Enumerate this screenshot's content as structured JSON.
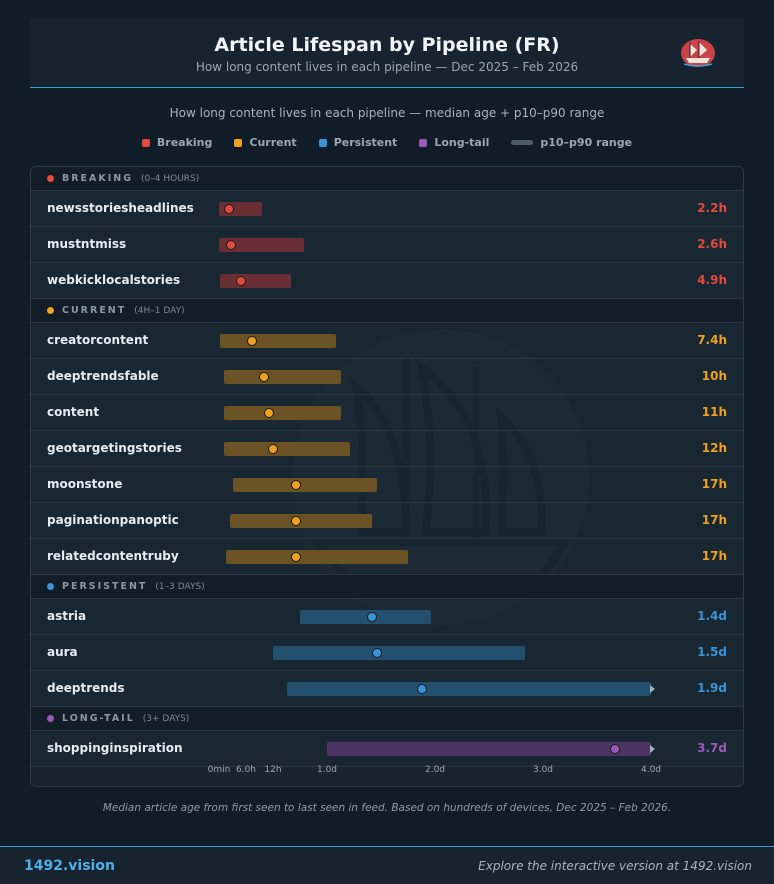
{
  "header": {
    "title": "Article Lifespan by Pipeline (FR)",
    "subtitle": "How long content lives in each pipeline — Dec 2025 – Feb 2026"
  },
  "chart_subtitle": "How long content lives in each pipeline — median age + p10–p90 range",
  "legend": [
    {
      "label": "Breaking",
      "color": "#e04b3e",
      "kind": "dot"
    },
    {
      "label": "Current",
      "color": "#f0a020",
      "kind": "dot"
    },
    {
      "label": "Persistent",
      "color": "#3b93d6",
      "kind": "dot"
    },
    {
      "label": "Long-tail",
      "color": "#9b59b6",
      "kind": "dot"
    },
    {
      "label": "p10–p90 range",
      "color": "#4e5c6a",
      "kind": "range"
    }
  ],
  "chart_data": {
    "type": "range-dot",
    "units": "hours",
    "x_ticks": [
      {
        "label": "0min",
        "hours": 0
      },
      {
        "label": "6.0h",
        "hours": 6
      },
      {
        "label": "12h",
        "hours": 12
      },
      {
        "label": "1.0d",
        "hours": 24
      },
      {
        "label": "2.0d",
        "hours": 48
      },
      {
        "label": "3.0d",
        "hours": 72
      },
      {
        "label": "4.0d",
        "hours": 96
      }
    ],
    "xlim": [
      0,
      96
    ],
    "groups": [
      {
        "name": "BREAKING",
        "range_label": "(0–4 HOURS)",
        "color": "#e04b3e",
        "bar_color": "#6a2f34",
        "rows": [
          {
            "name": "newsstoriesheadlines",
            "p10": 0.1,
            "p90": 9.5,
            "median": 2.2,
            "value_label": "2.2h"
          },
          {
            "name": "mustntmiss",
            "p10": 0.1,
            "p90": 19,
            "median": 2.6,
            "value_label": "2.6h"
          },
          {
            "name": "webkicklocalstories",
            "p10": 0.3,
            "p90": 16,
            "median": 4.9,
            "value_label": "4.9h"
          }
        ]
      },
      {
        "name": "CURRENT",
        "range_label": "(4H–1 DAY)",
        "color": "#f0a020",
        "bar_color": "#6b5225",
        "rows": [
          {
            "name": "creatorcontent",
            "p10": 0.3,
            "p90": 26,
            "median": 7.4,
            "value_label": "7.4h"
          },
          {
            "name": "deeptrendsfable",
            "p10": 1,
            "p90": 27,
            "median": 10,
            "value_label": "10h"
          },
          {
            "name": "content",
            "p10": 1,
            "p90": 27,
            "median": 11,
            "value_label": "11h"
          },
          {
            "name": "geotargetingstories",
            "p10": 1,
            "p90": 29,
            "median": 12,
            "value_label": "12h"
          },
          {
            "name": "moonstone",
            "p10": 3,
            "p90": 35,
            "median": 17,
            "value_label": "17h"
          },
          {
            "name": "paginationpanoptic",
            "p10": 2.5,
            "p90": 34,
            "median": 17,
            "value_label": "17h"
          },
          {
            "name": "relatedcontentruby",
            "p10": 1.5,
            "p90": 42,
            "median": 17,
            "value_label": "17h"
          }
        ]
      },
      {
        "name": "PERSISTENT",
        "range_label": "(1–3 DAYS)",
        "color": "#3b93d6",
        "bar_color": "#24506f",
        "rows": [
          {
            "name": "astria",
            "p10": 18,
            "p90": 47,
            "median": 34,
            "value_label": "1.4d"
          },
          {
            "name": "aura",
            "p10": 12,
            "p90": 68,
            "median": 35,
            "value_label": "1.5d"
          },
          {
            "name": "deeptrends",
            "p10": 15,
            "p90": 96,
            "median": 45,
            "value_label": "1.9d",
            "truncated": true
          }
        ]
      },
      {
        "name": "LONG-TAIL",
        "range_label": "(3+ DAYS)",
        "color": "#9b59b6",
        "bar_color": "#4c3565",
        "rows": [
          {
            "name": "shoppinginspiration",
            "p10": 24,
            "p90": 96,
            "median": 88,
            "value_label": "3.7d",
            "truncated": true
          }
        ]
      }
    ]
  },
  "footnote": "Median article age from first seen to last seen in feed. Based on hundreds of devices, Dec 2025 – Feb 2026.",
  "footer": {
    "brand": "1492.vision",
    "explore": "Explore the interactive version at 1492.vision"
  }
}
